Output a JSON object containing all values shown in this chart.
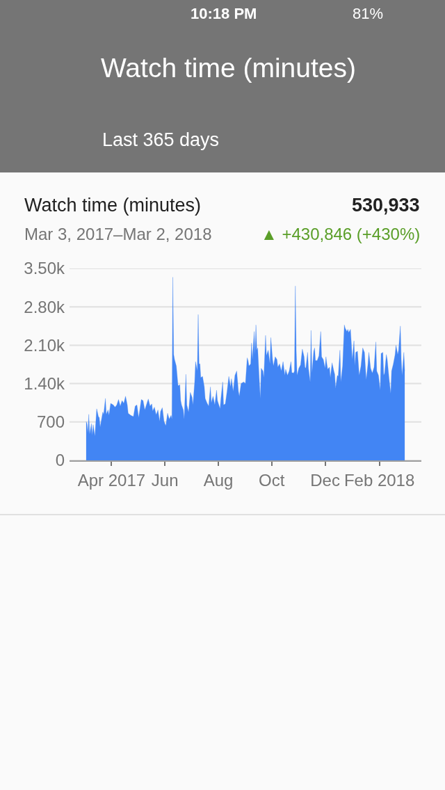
{
  "chart_data": {
    "type": "area",
    "title": "Watch time (minutes)",
    "subtitle": "Last 365 days",
    "annotations": [
      "10:18 PM",
      "81%",
      "Watch time (minutes)",
      "530,933",
      "Mar 3, 2017–Mar 2, 2018",
      "▲ +430,846 (+430%)"
    ],
    "color": "#4285f4",
    "grid": "y",
    "xlim": [
      "2017-02-12",
      "2018-03-21"
    ],
    "xticks": [
      {
        "value": "2017-04-01",
        "label": "Apr 2017"
      },
      {
        "value": "2017-06-01",
        "label": "Jun"
      },
      {
        "value": "2017-08-01",
        "label": "Aug"
      },
      {
        "value": "2017-10-01",
        "label": "Oct"
      },
      {
        "value": "2017-12-01",
        "label": "Dec"
      },
      {
        "value": "2018-02-01",
        "label": "Feb 2018"
      }
    ],
    "ylim": [
      0,
      3500
    ],
    "yticks": [
      0,
      700,
      {
        "value": 1400,
        "label": "1.40k"
      },
      {
        "value": 2100,
        "label": "2.10k"
      },
      {
        "value": 2800,
        "label": "2.80k"
      },
      {
        "value": 3500,
        "label": "3.50k"
      }
    ],
    "x": [
      "2017-03-03",
      "2017-03-04",
      "2017-03-05",
      "2017-03-06",
      "2017-03-07",
      "2017-03-09",
      "2017-03-10",
      "2017-03-11",
      "2017-03-13",
      "2017-03-15",
      "2017-03-17",
      "2017-03-18",
      "2017-03-19",
      "2017-03-22",
      "2017-03-23",
      "2017-03-25",
      "2017-03-26",
      "2017-03-28",
      "2017-03-29",
      "2017-03-31",
      "2017-04-03",
      "2017-04-05",
      "2017-04-07",
      "2017-04-09",
      "2017-04-11",
      "2017-04-13",
      "2017-04-15",
      "2017-04-17",
      "2017-04-19",
      "2017-04-20",
      "2017-04-23",
      "2017-04-26",
      "2017-04-28",
      "2017-04-30",
      "2017-05-02",
      "2017-05-05",
      "2017-05-07",
      "2017-05-09",
      "2017-05-10",
      "2017-05-13",
      "2017-05-15",
      "2017-05-17",
      "2017-05-18",
      "2017-05-20",
      "2017-05-22",
      "2017-05-24",
      "2017-05-26",
      "2017-05-27",
      "2017-05-29",
      "2017-05-31",
      "2017-06-02",
      "2017-06-04",
      "2017-06-06",
      "2017-06-08",
      "2017-06-09",
      "2017-06-10",
      "2017-06-11",
      "2017-06-12",
      "2017-06-14",
      "2017-06-16",
      "2017-06-18",
      "2017-06-19",
      "2017-06-20",
      "2017-06-22",
      "2017-06-23",
      "2017-06-25",
      "2017-06-26",
      "2017-06-28",
      "2017-06-30",
      "2017-07-02",
      "2017-07-03",
      "2017-07-05",
      "2017-07-06",
      "2017-07-08",
      "2017-07-09",
      "2017-07-10",
      "2017-07-11",
      "2017-07-12",
      "2017-07-14",
      "2017-07-16",
      "2017-07-17",
      "2017-07-19",
      "2017-07-21",
      "2017-07-23",
      "2017-07-24",
      "2017-07-26",
      "2017-07-28",
      "2017-07-30",
      "2017-07-31",
      "2017-08-03",
      "2017-08-04",
      "2017-08-06",
      "2017-08-07",
      "2017-08-09",
      "2017-08-11",
      "2017-08-13",
      "2017-08-15",
      "2017-08-16",
      "2017-08-18",
      "2017-08-20",
      "2017-08-22",
      "2017-08-24",
      "2017-08-25",
      "2017-08-27",
      "2017-08-30",
      "2017-09-01",
      "2017-09-03",
      "2017-09-04",
      "2017-09-05",
      "2017-09-07",
      "2017-09-08",
      "2017-09-09",
      "2017-09-11",
      "2017-09-12",
      "2017-09-13",
      "2017-09-14",
      "2017-09-15",
      "2017-09-16",
      "2017-09-18",
      "2017-09-19",
      "2017-09-21",
      "2017-09-22",
      "2017-09-24",
      "2017-09-25",
      "2017-09-27",
      "2017-09-29",
      "2017-09-30",
      "2017-10-02",
      "2017-10-03",
      "2017-10-05",
      "2017-10-07",
      "2017-10-08",
      "2017-10-10",
      "2017-10-12",
      "2017-10-14",
      "2017-10-16",
      "2017-10-17",
      "2017-10-19",
      "2017-10-21",
      "2017-10-23",
      "2017-10-24",
      "2017-10-26",
      "2017-10-27",
      "2017-10-28",
      "2017-10-29",
      "2017-10-30",
      "2017-11-01",
      "2017-11-03",
      "2017-11-05",
      "2017-11-07",
      "2017-11-08",
      "2017-11-09",
      "2017-11-11",
      "2017-11-12",
      "2017-11-14",
      "2017-11-15",
      "2017-11-16",
      "2017-11-18",
      "2017-11-19",
      "2017-11-20",
      "2017-11-22",
      "2017-11-24",
      "2017-11-26",
      "2017-11-27",
      "2017-11-29",
      "2017-12-01",
      "2017-12-02",
      "2017-12-03",
      "2017-12-04",
      "2017-12-06",
      "2017-12-07",
      "2017-12-09",
      "2017-12-11",
      "2017-12-12",
      "2017-12-13",
      "2017-12-15",
      "2017-12-16",
      "2017-12-18",
      "2017-12-19",
      "2017-12-21",
      "2017-12-23",
      "2017-12-24",
      "2017-12-26",
      "2017-12-27",
      "2017-12-28",
      "2017-12-30",
      "2017-12-31",
      "2018-01-01",
      "2018-01-03",
      "2018-01-04",
      "2018-01-05",
      "2018-01-07",
      "2018-01-09",
      "2018-01-11",
      "2018-01-13",
      "2018-01-15",
      "2018-01-17",
      "2018-01-19",
      "2018-01-20",
      "2018-01-22",
      "2018-01-24",
      "2018-01-26",
      "2018-01-28",
      "2018-01-29",
      "2018-01-31",
      "2018-02-02",
      "2018-02-03",
      "2018-02-05",
      "2018-02-06",
      "2018-02-07",
      "2018-02-09",
      "2018-02-10",
      "2018-02-12",
      "2018-02-14",
      "2018-02-15",
      "2018-02-17",
      "2018-02-19",
      "2018-02-20",
      "2018-02-22",
      "2018-02-23",
      "2018-02-25",
      "2018-02-26",
      "2018-02-27",
      "2018-03-01",
      "2018-03-02"
    ],
    "values": [
      710,
      670,
      500,
      840,
      480,
      670,
      460,
      650,
      440,
      940,
      800,
      780,
      610,
      880,
      840,
      1130,
      840,
      920,
      820,
      1040,
      1010,
      970,
      1010,
      1110,
      990,
      1090,
      1040,
      1170,
      1010,
      860,
      820,
      800,
      990,
      1010,
      780,
      1110,
      1090,
      920,
      970,
      1120,
      990,
      1030,
      900,
      970,
      830,
      920,
      710,
      890,
      960,
      710,
      630,
      860,
      750,
      820,
      750,
      3340,
      1930,
      1840,
      1720,
      1360,
      1380,
      1090,
      1010,
      920,
      750,
      1570,
      1010,
      880,
      1240,
      1150,
      1010,
      1430,
      1800,
      1630,
      2660,
      1760,
      1760,
      1510,
      1530,
      1340,
      1130,
      1050,
      990,
      1340,
      1050,
      1170,
      1010,
      1280,
      1090,
      940,
      1130,
      1430,
      1010,
      1030,
      1260,
      1530,
      1340,
      1490,
      1260,
      1550,
      1630,
      1260,
      1170,
      1400,
      1430,
      1400,
      1870,
      1820,
      1720,
      1760,
      2140,
      1840,
      2350,
      1930,
      2470,
      2010,
      2050,
      1720,
      1130,
      1680,
      1630,
      1510,
      2280,
      1910,
      2010,
      1760,
      2240,
      1840,
      1720,
      1890,
      1840,
      1700,
      1760,
      1630,
      1800,
      1550,
      1660,
      1550,
      1630,
      1800,
      1600,
      1590,
      1630,
      3180,
      2010,
      1550,
      1680,
      1740,
      2030,
      1890,
      1700,
      1680,
      1970,
      1680,
      1430,
      2370,
      1590,
      1990,
      2050,
      1820,
      1820,
      1910,
      2350,
      1890,
      1840,
      1680,
      1890,
      1760,
      1660,
      1700,
      1510,
      1780,
      1630,
      1570,
      1320,
      1550,
      1530,
      2010,
      1430,
      1720,
      2470,
      2410,
      2350,
      2390,
      2330,
      2390,
      2140,
      1840,
      2180,
      1720,
      1970,
      1990,
      1550,
      1720,
      2050,
      1970,
      1470,
      1760,
      1970,
      1680,
      1590,
      1700,
      2160,
      1630,
      1550,
      1280,
      1950,
      1970,
      1550,
      1590,
      1930,
      1840,
      1510,
      1220,
      1630,
      1760,
      1930,
      2100,
      1930,
      2010,
      2450,
      1840,
      1550,
      1970,
      1630
    ]
  }
}
